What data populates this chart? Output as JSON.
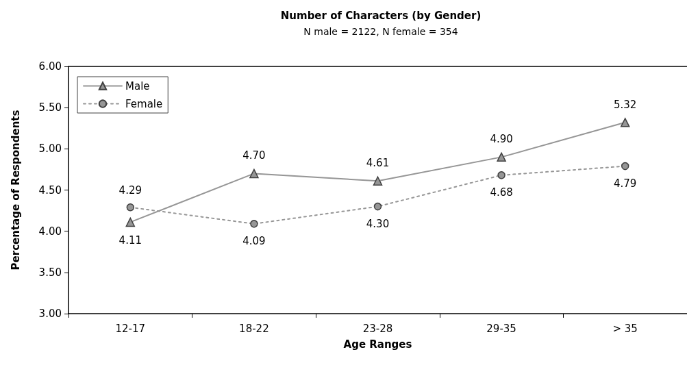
{
  "chart_data": {
    "type": "line",
    "title": "Number of Characters (by Gender)",
    "subtitle": "N male = 2122, N female = 354",
    "xlabel": "Age Ranges",
    "ylabel": "Percentage of Respondents",
    "categories": [
      "12-17",
      "18-22",
      "23-28",
      "29-35",
      "> 35"
    ],
    "series": [
      {
        "name": "Male",
        "color": "#969696",
        "marker": "triangle",
        "line_style": "solid",
        "values": [
          4.11,
          4.7,
          4.61,
          4.9,
          5.32
        ],
        "value_labels": [
          "4.11",
          "4.70",
          "4.61",
          "4.90",
          "5.32"
        ]
      },
      {
        "name": "Female",
        "color": "#969696",
        "marker": "circle",
        "line_style": "dotted",
        "values": [
          4.29,
          4.09,
          4.3,
          4.68,
          4.79
        ],
        "value_labels": [
          "4.29",
          "4.09",
          "4.30",
          "4.68",
          "4.79"
        ]
      }
    ],
    "ylim": [
      3,
      6
    ],
    "yticks": [
      {
        "value": 3,
        "label": "3.00"
      },
      {
        "value": 3.5,
        "label": "3.50"
      },
      {
        "value": 4,
        "label": "4.00"
      },
      {
        "value": 4.5,
        "label": "4.50"
      },
      {
        "value": 5,
        "label": "5.00"
      },
      {
        "value": 5.5,
        "label": "5.50"
      },
      {
        "value": 6,
        "label": "6.00"
      }
    ],
    "grid": false,
    "legend": "top left"
  }
}
